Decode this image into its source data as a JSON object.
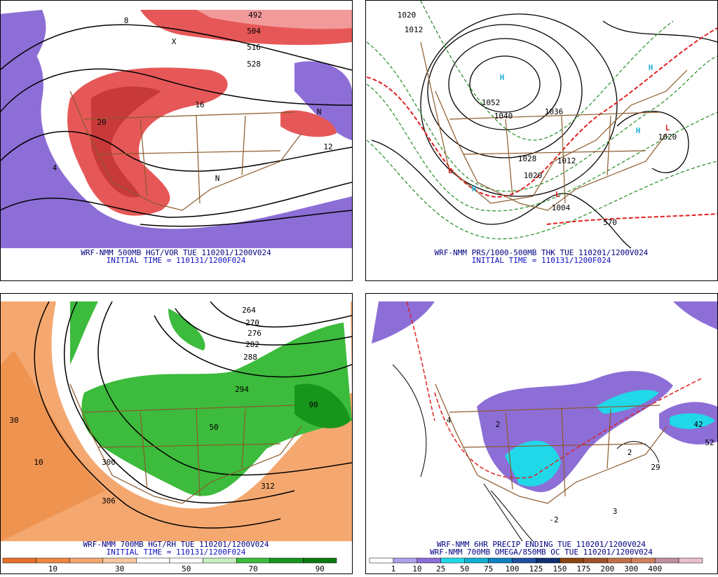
{
  "panels": [
    {
      "caption": "WRF-NMM 500MB HGT/VOR TUE 110201/1200V024",
      "subcaption": "INITIAL TIME = 110131/1200F024",
      "labels": [
        "492",
        "504",
        "516",
        "528",
        "8",
        "12",
        "20",
        "N",
        "X",
        "4",
        "16",
        "N"
      ]
    },
    {
      "caption": "WRF-NMM PRS/1000-500MB THK TUE 110201/1200V024",
      "subcaption": "INITIAL TIME = 110131/1200F024",
      "labels": [
        "1020",
        "1012",
        "1052",
        "1040",
        "1036",
        "1028",
        "1020",
        "1012",
        "1004",
        "570",
        "H",
        "H",
        "H",
        "H",
        "L",
        "L",
        "L",
        "1020"
      ]
    },
    {
      "caption": "WRF-NMM 700MB HGT/RH TUE 110201/1200V024",
      "subcaption": "INITIAL TIME = 110131/1200F024",
      "labels": [
        "264",
        "270",
        "276",
        "282",
        "288",
        "294",
        "306",
        "300",
        "312",
        "50",
        "90",
        "10",
        "30"
      ]
    },
    {
      "caption": "WRF-NMM 6HR PRECIP ENDING TUE 110201/1200V024",
      "subcaption": "WRF-NMM 700MB OMEGA/850MB OC TUE 110201/1200V024",
      "labels": [
        "4",
        "2",
        "-2",
        "3",
        "2",
        "52",
        "42",
        "29"
      ]
    }
  ],
  "colorbars": [
    {
      "labels": [
        10,
        30,
        50,
        70,
        90
      ]
    },
    {
      "labels": [
        1,
        10,
        25,
        50,
        75,
        100,
        125,
        150,
        175,
        200,
        300,
        400
      ]
    }
  ]
}
